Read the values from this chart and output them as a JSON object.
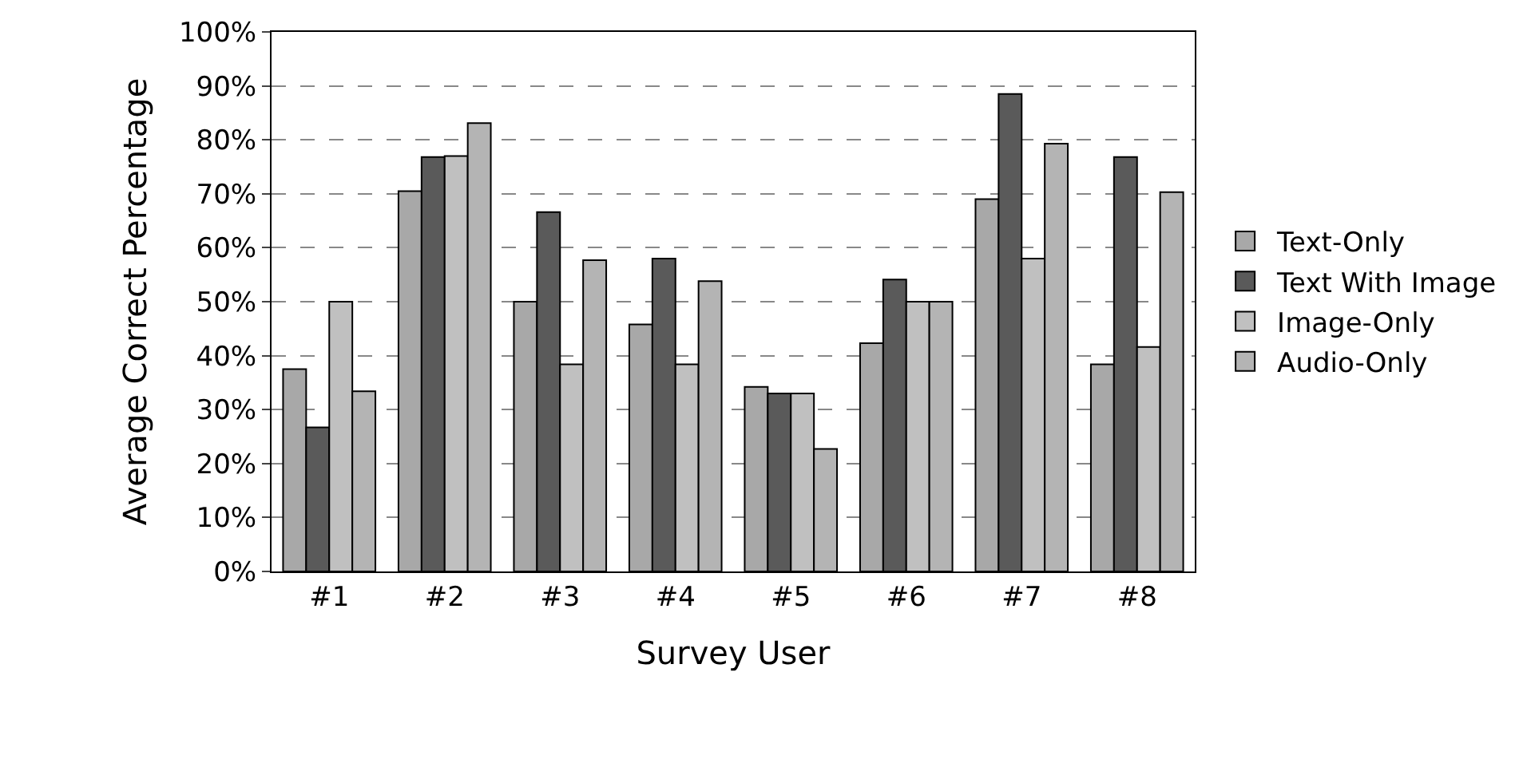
{
  "chart_data": {
    "type": "bar",
    "xlabel": "Survey User",
    "ylabel": "Average Correct Percentage",
    "categories": [
      "#1",
      "#2",
      "#3",
      "#4",
      "#5",
      "#6",
      "#7",
      "#8"
    ],
    "series": [
      {
        "name": "Text-Only",
        "color": "#a8a8a8",
        "values": [
          37.5,
          70.5,
          50,
          45.8,
          34.2,
          42.3,
          69,
          38.4
        ]
      },
      {
        "name": "Text With Image",
        "color": "#5a5a5a",
        "values": [
          26.7,
          76.8,
          66.6,
          58,
          33,
          54.1,
          88.5,
          76.8
        ]
      },
      {
        "name": "Image-Only",
        "color": "#c0c0c0",
        "values": [
          50,
          77,
          38.4,
          38.4,
          33,
          50,
          58,
          41.6
        ]
      },
      {
        "name": "Audio-Only",
        "color": "#b4b4b4",
        "values": [
          33.4,
          83.1,
          57.7,
          53.8,
          22.7,
          50,
          79.3,
          70.3
        ]
      }
    ],
    "ylim": [
      0,
      100
    ],
    "yticks": [
      {
        "value": 0,
        "label": "0%"
      },
      {
        "value": 10,
        "label": "10%"
      },
      {
        "value": 20,
        "label": "20%"
      },
      {
        "value": 30,
        "label": "30%"
      },
      {
        "value": 40,
        "label": "40%"
      },
      {
        "value": 50,
        "label": "50%"
      },
      {
        "value": 60,
        "label": "60%"
      },
      {
        "value": 70,
        "label": "70%"
      },
      {
        "value": 80,
        "label": "80%"
      },
      {
        "value": 90,
        "label": "90%"
      },
      {
        "value": 100,
        "label": "100%"
      }
    ],
    "grid": "y",
    "legend": "right"
  }
}
